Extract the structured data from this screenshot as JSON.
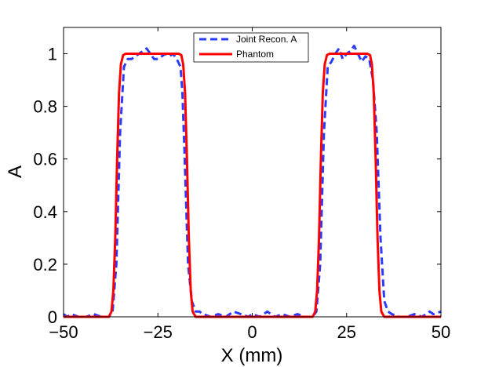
{
  "chart_data": {
    "type": "line",
    "title": "",
    "xlabel": "X (mm)",
    "ylabel": "A",
    "xlim": [
      -50,
      50
    ],
    "ylim": [
      0,
      1.1
    ],
    "x_ticks": [
      -50,
      -25,
      0,
      25,
      50
    ],
    "x_tick_labels": [
      "−50",
      "−25",
      "0",
      "25",
      "50"
    ],
    "y_ticks": [
      0,
      0.2,
      0.4,
      0.6,
      0.8,
      1
    ],
    "y_tick_labels": [
      "0",
      "0.2",
      "0.4",
      "0.6",
      "0.8",
      "1"
    ],
    "grid": false,
    "legend_position": "top-center",
    "series": [
      {
        "name": "Joint Recon. A",
        "color": "#2b3bff",
        "line_style": "dashed",
        "points": [
          [
            -50,
            0.01
          ],
          [
            -49,
            0.0
          ],
          [
            -48,
            0.01
          ],
          [
            -46,
            0.0
          ],
          [
            -44,
            0.0
          ],
          [
            -42,
            0.01
          ],
          [
            -40,
            0.0
          ],
          [
            -38,
            0.0
          ],
          [
            -37,
            0.02
          ],
          [
            -36,
            0.2
          ],
          [
            -35,
            0.7
          ],
          [
            -34,
            0.95
          ],
          [
            -33,
            0.98
          ],
          [
            -32,
            0.98
          ],
          [
            -31,
            0.99
          ],
          [
            -30,
            1.0
          ],
          [
            -29,
            1.01
          ],
          [
            -28,
            1.02
          ],
          [
            -27,
            1.0
          ],
          [
            -26,
            0.98
          ],
          [
            -25,
            0.98
          ],
          [
            -24,
            0.99
          ],
          [
            -23,
            1.0
          ],
          [
            -22,
            0.99
          ],
          [
            -21,
            1.0
          ],
          [
            -20,
            0.98
          ],
          [
            -19,
            0.95
          ],
          [
            -18.5,
            0.85
          ],
          [
            -18,
            0.65
          ],
          [
            -17,
            0.2
          ],
          [
            -16,
            0.06
          ],
          [
            -15,
            0.02
          ],
          [
            -14,
            0.02
          ],
          [
            -13,
            0.01
          ],
          [
            -11,
            0.0
          ],
          [
            -9,
            0.01
          ],
          [
            -7,
            0.0
          ],
          [
            -5,
            0.02
          ],
          [
            -3,
            0.01
          ],
          [
            -1,
            0.0
          ],
          [
            0,
            0.01
          ],
          [
            2,
            0.0
          ],
          [
            4,
            0.02
          ],
          [
            6,
            0.0
          ],
          [
            8,
            0.01
          ],
          [
            10,
            0.0
          ],
          [
            12,
            0.01
          ],
          [
            14,
            0.0
          ],
          [
            16,
            0.0
          ],
          [
            17,
            0.02
          ],
          [
            18,
            0.2
          ],
          [
            19,
            0.7
          ],
          [
            20,
            0.95
          ],
          [
            21,
            0.97
          ],
          [
            22,
            1.0
          ],
          [
            23,
            1.02
          ],
          [
            24,
            0.98
          ],
          [
            25,
            1.0
          ],
          [
            26,
            1.01
          ],
          [
            27,
            1.03
          ],
          [
            28,
            1.0
          ],
          [
            29,
            0.97
          ],
          [
            30,
            0.99
          ],
          [
            31,
            0.98
          ],
          [
            32,
            0.9
          ],
          [
            33,
            0.7
          ],
          [
            34,
            0.3
          ],
          [
            35,
            0.06
          ],
          [
            36,
            0.02
          ],
          [
            37,
            0.01
          ],
          [
            39,
            0.0
          ],
          [
            41,
            0.0
          ],
          [
            43,
            0.01
          ],
          [
            45,
            0.0
          ],
          [
            46,
            0.01
          ],
          [
            47,
            0.02
          ],
          [
            48,
            0.01
          ],
          [
            50,
            0.02
          ]
        ]
      },
      {
        "name": "Phantom",
        "color": "#ff0000",
        "line_style": "solid",
        "points": [
          [
            -50,
            0.0
          ],
          [
            -38,
            0.0
          ],
          [
            -37.3,
            0.02
          ],
          [
            -36.8,
            0.1
          ],
          [
            -36.3,
            0.3
          ],
          [
            -35.8,
            0.6
          ],
          [
            -35.3,
            0.85
          ],
          [
            -34.8,
            0.96
          ],
          [
            -34.2,
            0.995
          ],
          [
            -33.5,
            1.0
          ],
          [
            -19.5,
            1.0
          ],
          [
            -18.8,
            0.995
          ],
          [
            -18.3,
            0.96
          ],
          [
            -17.8,
            0.85
          ],
          [
            -17.3,
            0.6
          ],
          [
            -16.8,
            0.3
          ],
          [
            -16.3,
            0.1
          ],
          [
            -15.8,
            0.02
          ],
          [
            -15,
            0.0
          ],
          [
            16,
            0.0
          ],
          [
            16.7,
            0.02
          ],
          [
            17.2,
            0.1
          ],
          [
            17.7,
            0.3
          ],
          [
            18.2,
            0.6
          ],
          [
            18.7,
            0.85
          ],
          [
            19.2,
            0.96
          ],
          [
            19.8,
            0.995
          ],
          [
            20.5,
            1.0
          ],
          [
            30.5,
            1.0
          ],
          [
            31.2,
            0.995
          ],
          [
            31.7,
            0.96
          ],
          [
            32.2,
            0.85
          ],
          [
            32.7,
            0.6
          ],
          [
            33.2,
            0.3
          ],
          [
            33.7,
            0.1
          ],
          [
            34.2,
            0.02
          ],
          [
            35,
            0.0
          ],
          [
            50,
            0.0
          ]
        ]
      }
    ]
  }
}
